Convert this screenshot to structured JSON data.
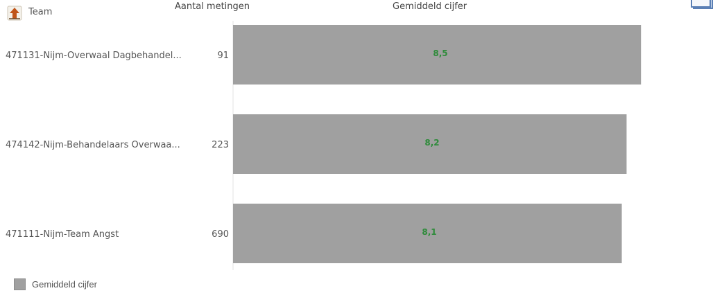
{
  "header": {
    "team_label": "Team",
    "count_label": "Aantal metingen",
    "avg_label": "Gemiddeld cijfer"
  },
  "colors": {
    "bar": "#a0a0a0",
    "value_label": "#2e8b3a",
    "icon_arrow": "#c0551a"
  },
  "icons": {
    "sort": "sort-up-arrow-icon",
    "corner": "window-icon"
  },
  "chart_data": {
    "type": "bar",
    "orientation": "horizontal",
    "categories": [
      "471131-Nijm-Overwaal Dagbehandel...",
      "474142-Nijm-Behandelaars Overwaa...",
      "471111-Nijm-Team Angst"
    ],
    "counts": [
      91,
      223,
      690
    ],
    "series": [
      {
        "name": "Gemiddeld cijfer",
        "values": [
          8.5,
          8.2,
          8.1
        ],
        "labels": [
          "8,5",
          "8,2",
          "8,1"
        ]
      }
    ],
    "xlim": [
      0,
      10
    ],
    "legend": "bottom-left",
    "grid": false
  }
}
